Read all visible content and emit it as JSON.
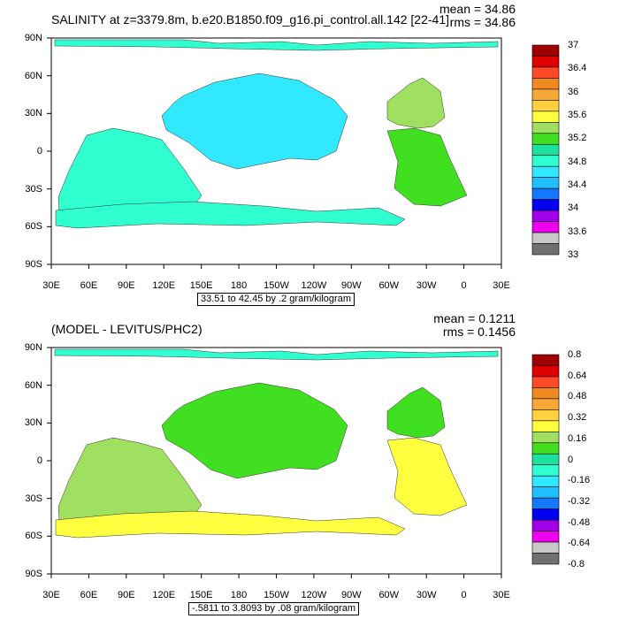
{
  "chart_data": [
    {
      "type": "heatmap",
      "title": "SALINITY at z=3379.8m, b.e20.B1850.f09_g16.pi_control.all.142 [22-41]",
      "mean_label": "mean = 34.86",
      "rms_label": "rms = 34.86",
      "caption": "33.51 to 42.45 by .2 gram/kilogram",
      "x_ticks": [
        "30E",
        "60E",
        "90E",
        "120E",
        "150E",
        "180",
        "150W",
        "120W",
        "90W",
        "60W",
        "30W",
        "0",
        "30E"
      ],
      "y_ticks": [
        "90N",
        "60N",
        "30N",
        "0",
        "30S",
        "60S",
        "90S"
      ],
      "colorbar_labels": [
        "37",
        "36.4",
        "36",
        "35.6",
        "35.2",
        "34.8",
        "34.4",
        "34",
        "33.6",
        "33"
      ],
      "colorbar_colors": [
        "#a00000",
        "#e00000",
        "#ff4a2a",
        "#f08a20",
        "#f8a838",
        "#ffd040",
        "#ffff40",
        "#a0e060",
        "#40e020",
        "#1ee0a0",
        "#30ffd0",
        "#30e8ff",
        "#20c0ff",
        "#1478ff",
        "#0000f0",
        "#a000e8",
        "#f000f0",
        "#c8c8c8",
        "#707070"
      ],
      "regions": [
        {
          "name": "pacific",
          "value": 34.7,
          "color": "#30e8ff"
        },
        {
          "name": "indian",
          "value": 34.75,
          "color": "#30ffd0"
        },
        {
          "name": "southern",
          "value": 34.75,
          "color": "#30ffd0"
        },
        {
          "name": "arctic",
          "value": 34.75,
          "color": "#30ffd0"
        },
        {
          "name": "atlantic-north",
          "value": 35.0,
          "color": "#a0e060"
        },
        {
          "name": "atlantic-south",
          "value": 35.0,
          "color": "#40e020"
        }
      ]
    },
    {
      "type": "heatmap",
      "title": "(MODEL - LEVITUS/PHC2)",
      "mean_label": "mean = 0.1211",
      "rms_label": "rms = 0.1456",
      "caption": "-.5811 to 3.8093 by .08 gram/kilogram",
      "x_ticks": [
        "30E",
        "60E",
        "90E",
        "120E",
        "150E",
        "180",
        "150W",
        "120W",
        "90W",
        "60W",
        "30W",
        "0",
        "30E"
      ],
      "y_ticks": [
        "90N",
        "60N",
        "30N",
        "0",
        "30S",
        "60S",
        "90S"
      ],
      "colorbar_labels": [
        "0.8",
        "0.64",
        "0.48",
        "0.32",
        "0.16",
        "0",
        "-0.16",
        "-0.32",
        "-0.48",
        "-0.64",
        "-0.8"
      ],
      "colorbar_colors": [
        "#a00000",
        "#e00000",
        "#ff4a2a",
        "#f08a20",
        "#f8a838",
        "#ffd040",
        "#ffff40",
        "#a0e060",
        "#40e020",
        "#1ee0a0",
        "#30ffd0",
        "#30e8ff",
        "#20c0ff",
        "#1478ff",
        "#0000f0",
        "#a000e8",
        "#f000f0",
        "#c8c8c8",
        "#707070"
      ],
      "regions": [
        {
          "name": "pacific",
          "value": 0.1,
          "color": "#40e020"
        },
        {
          "name": "indian",
          "value": 0.15,
          "color": "#a0e060"
        },
        {
          "name": "southern",
          "value": 0.2,
          "color": "#ffff40"
        },
        {
          "name": "arctic",
          "value": -0.1,
          "color": "#30ffd0"
        },
        {
          "name": "atlantic-north",
          "value": 0.1,
          "color": "#40e020"
        },
        {
          "name": "atlantic-south",
          "value": 0.2,
          "color": "#ffff40"
        }
      ]
    }
  ]
}
